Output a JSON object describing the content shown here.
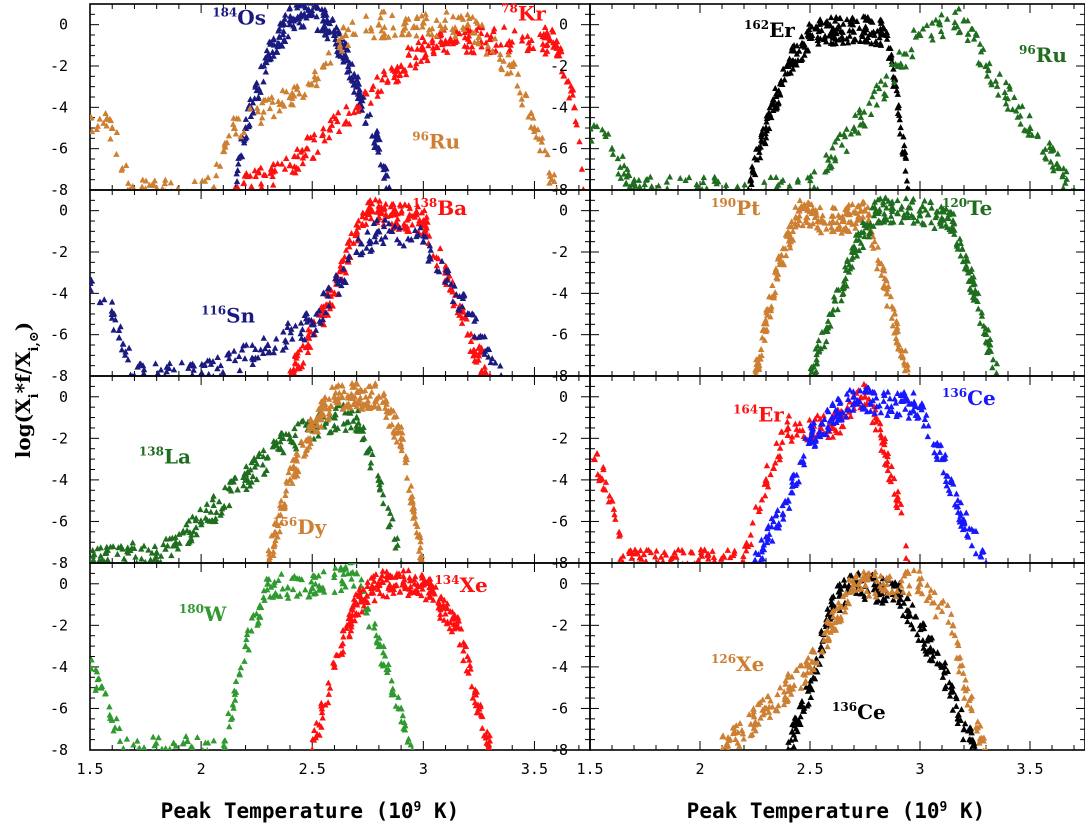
{
  "figure": {
    "xlabel": "Peak Temperature (10",
    "xlabel_exp": "9",
    "xlabel_end": " K)",
    "ylabel_main": "log(X",
    "ylabel_sub": "i",
    "ylabel_mid": "*f/X",
    "ylabel_sub2": "i,⊙",
    "ylabel_end": ")",
    "x_ticks": [
      "1.5",
      "2",
      "2.5",
      "3",
      "3.5"
    ],
    "y_ticks": [
      "0",
      "-2",
      "-4",
      "-6",
      "-8"
    ]
  },
  "colors": {
    "navy": "#1a1a80",
    "orange": "#cd7f32",
    "red": "#ff1010",
    "black": "#000000",
    "green": "#1f6e1f",
    "lightgreen": "#2f9a2f",
    "blue": "#1818ff"
  },
  "chart_data": [
    {
      "type": "scatter",
      "panel": "left-1",
      "xlim": [
        1.5,
        3.75
      ],
      "ylim": [
        -8,
        1
      ],
      "grid": false,
      "series": [
        {
          "name": "184Os",
          "mass": "184",
          "symbol": "Os",
          "color": "#1a1a80",
          "x": [
            2.15,
            2.2,
            2.3,
            2.4,
            2.45,
            2.5,
            2.55,
            2.6,
            2.65,
            2.7,
            2.8,
            2.85
          ],
          "y": [
            -8,
            -5,
            -1.5,
            0.2,
            0.5,
            0.5,
            0.2,
            -0.5,
            -1.5,
            -3,
            -6,
            -8
          ]
        },
        {
          "name": "78Kr",
          "mass": "78",
          "symbol": "Kr",
          "color": "#ff1010",
          "x": [
            2.15,
            2.4,
            2.7,
            2.9,
            3.0,
            3.1,
            3.3,
            3.6,
            3.68,
            3.72
          ],
          "y": [
            -8,
            -6.8,
            -4,
            -2,
            -1.2,
            -0.8,
            -0.7,
            -0.8,
            -4,
            -8
          ]
        },
        {
          "name": "96Ru",
          "mass": "96",
          "symbol": "Ru",
          "color": "#cd7f32",
          "x": [
            1.5,
            1.6,
            1.68,
            2.05,
            2.15,
            2.4,
            2.55,
            2.65,
            2.8,
            3.0,
            3.2,
            3.4,
            3.5,
            3.6
          ],
          "y": [
            -4.5,
            -5,
            -8,
            -8,
            -5,
            -3.5,
            -2,
            -0.5,
            0,
            0.1,
            0,
            -2,
            -5,
            -8
          ]
        }
      ]
    },
    {
      "type": "scatter",
      "panel": "right-1",
      "xlim": [
        1.5,
        3.75
      ],
      "ylim": [
        -8,
        1
      ],
      "grid": false,
      "series": [
        {
          "name": "162Er",
          "mass": "162",
          "symbol": "Er",
          "color": "#000000",
          "x": [
            2.22,
            2.3,
            2.4,
            2.5,
            2.6,
            2.75,
            2.85,
            2.9,
            2.95
          ],
          "y": [
            -8,
            -5,
            -2,
            -0.5,
            -0.3,
            -0.2,
            -0.5,
            -4,
            -8
          ]
        },
        {
          "name": "96Ru",
          "mass": "96",
          "symbol": "Ru",
          "color": "#1f6e1f",
          "x": [
            1.5,
            1.6,
            1.7,
            2.5,
            2.7,
            2.9,
            3.0,
            3.2,
            3.3,
            3.5,
            3.7
          ],
          "y": [
            -5,
            -6,
            -8,
            -8,
            -5,
            -2,
            -0.5,
            0.2,
            -2,
            -5,
            -8
          ]
        }
      ]
    },
    {
      "type": "scatter",
      "panel": "left-2",
      "xlim": [
        1.5,
        3.75
      ],
      "ylim": [
        -8,
        1
      ],
      "grid": false,
      "series": [
        {
          "name": "138Ba",
          "mass": "138",
          "symbol": "Ba",
          "color": "#ff1010",
          "x": [
            2.4,
            2.6,
            2.7,
            2.75,
            3.0,
            3.1,
            3.2,
            3.3
          ],
          "y": [
            -8,
            -4,
            -1,
            0,
            -0.5,
            -3,
            -6,
            -8
          ]
        },
        {
          "name": "116Sn",
          "mass": "116",
          "symbol": "Sn",
          "color": "#1a1a80",
          "x": [
            1.5,
            1.6,
            1.7,
            2.0,
            2.3,
            2.5,
            2.7,
            2.8,
            3.0,
            3.2,
            3.35
          ],
          "y": [
            -3.5,
            -5,
            -8,
            -8,
            -6.5,
            -5.5,
            -2,
            -1,
            -1.5,
            -5,
            -8
          ]
        }
      ]
    },
    {
      "type": "scatter",
      "panel": "right-2",
      "xlim": [
        1.5,
        3.75
      ],
      "ylim": [
        -8,
        1
      ],
      "grid": false,
      "series": [
        {
          "name": "190Pt",
          "mass": "190",
          "symbol": "Pt",
          "color": "#cd7f32",
          "x": [
            2.25,
            2.35,
            2.45,
            2.55,
            2.65,
            2.75,
            2.85,
            2.95
          ],
          "y": [
            -8,
            -3,
            0,
            -0.5,
            -0.5,
            0,
            -4,
            -8
          ]
        },
        {
          "name": "120Te",
          "mass": "120",
          "symbol": "Te",
          "color": "#1f6e1f",
          "x": [
            2.5,
            2.6,
            2.7,
            2.8,
            3.0,
            3.15,
            3.25,
            3.35
          ],
          "y": [
            -8,
            -5,
            -2,
            0,
            0,
            -0.5,
            -4,
            -8
          ]
        }
      ]
    },
    {
      "type": "scatter",
      "panel": "left-3",
      "xlim": [
        1.5,
        3.75
      ],
      "ylim": [
        -8,
        1
      ],
      "grid": false,
      "series": [
        {
          "name": "138La",
          "mass": "138",
          "symbol": "La",
          "color": "#1f6e1f",
          "x": [
            1.5,
            1.8,
            2.0,
            2.2,
            2.4,
            2.6,
            2.7,
            2.8,
            2.9
          ],
          "y": [
            -8,
            -7.5,
            -6,
            -4,
            -2,
            -1,
            -1,
            -4,
            -8
          ]
        },
        {
          "name": "156Dy",
          "mass": "156",
          "symbol": "Dy",
          "color": "#cd7f32",
          "x": [
            2.3,
            2.4,
            2.5,
            2.6,
            2.8,
            2.9,
            2.95,
            3.0
          ],
          "y": [
            -8,
            -4,
            -1.5,
            0,
            0,
            -2,
            -5,
            -8
          ]
        }
      ]
    },
    {
      "type": "scatter",
      "panel": "right-3",
      "xlim": [
        1.5,
        3.75
      ],
      "ylim": [
        -8,
        1
      ],
      "grid": false,
      "series": [
        {
          "name": "164Er",
          "mass": "164",
          "symbol": "Er",
          "color": "#ff1010",
          "x": [
            1.52,
            1.6,
            1.65,
            2.2,
            2.3,
            2.4,
            2.6,
            2.75,
            2.8,
            2.9,
            2.95
          ],
          "y": [
            -3,
            -5,
            -8,
            -8,
            -4,
            -1.5,
            -1.5,
            0,
            -1,
            -5,
            -8
          ]
        },
        {
          "name": "136Ce",
          "mass": "136",
          "symbol": "Ce",
          "color": "#1818ff",
          "x": [
            2.25,
            2.4,
            2.5,
            2.6,
            2.7,
            3.0,
            3.1,
            3.2,
            3.3
          ],
          "y": [
            -8,
            -5,
            -2,
            -1,
            0,
            -0.5,
            -3,
            -6,
            -8
          ]
        }
      ]
    },
    {
      "type": "scatter",
      "panel": "left-4",
      "xlim": [
        1.5,
        3.75
      ],
      "ylim": [
        -8,
        1
      ],
      "grid": false,
      "series": [
        {
          "name": "180W",
          "mass": "180",
          "symbol": "W",
          "color": "#2f9a2f",
          "x": [
            1.5,
            1.55,
            1.65,
            2.1,
            2.2,
            2.3,
            2.5,
            2.7,
            2.8,
            2.9,
            2.95
          ],
          "y": [
            -4,
            -5,
            -8,
            -8,
            -3,
            0,
            -0.2,
            0.5,
            -3,
            -6,
            -8
          ]
        },
        {
          "name": "134Xe",
          "mass": "134",
          "symbol": "Xe",
          "color": "#ff1010",
          "x": [
            2.5,
            2.6,
            2.7,
            2.8,
            3.0,
            3.15,
            3.25,
            3.3
          ],
          "y": [
            -8,
            -4,
            -1,
            0,
            0,
            -2,
            -6,
            -8
          ]
        }
      ]
    },
    {
      "type": "scatter",
      "panel": "right-4",
      "xlim": [
        1.5,
        3.75
      ],
      "ylim": [
        -8,
        1
      ],
      "grid": false,
      "series": [
        {
          "name": "136Ce",
          "mass": "136",
          "symbol": "Ce",
          "color": "#000000",
          "x": [
            2.4,
            2.5,
            2.6,
            2.7,
            2.9,
            3.1,
            3.2,
            3.25
          ],
          "y": [
            -8,
            -5,
            -1,
            0,
            -0.5,
            -4,
            -7,
            -8
          ]
        },
        {
          "name": "126Xe",
          "mass": "126",
          "symbol": "Xe",
          "color": "#cd7f32",
          "x": [
            2.1,
            2.3,
            2.5,
            2.6,
            2.7,
            3.0,
            3.15,
            3.2,
            3.3
          ],
          "y": [
            -8,
            -6,
            -4,
            -2,
            0,
            0,
            -2,
            -5,
            -8
          ]
        }
      ]
    }
  ]
}
